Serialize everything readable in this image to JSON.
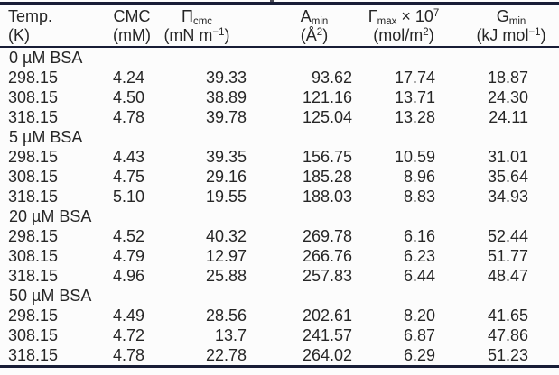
{
  "page": {
    "background_color": "#fcfcfc",
    "rule_color": "#181d36",
    "text_color": "#262626"
  },
  "table": {
    "columns": [
      {
        "line1": {
          "main": "Temp."
        },
        "line2": {
          "pre": "(K)"
        }
      },
      {
        "line1": {
          "main": "CMC"
        },
        "line2": {
          "pre": "(mM)"
        }
      },
      {
        "line1": {
          "main": "Π",
          "sub": "cmc"
        },
        "line2": {
          "pre": "(mN m",
          "sup": "−1",
          "post": ")"
        }
      },
      {
        "line1": {
          "main": "A",
          "sub": "min"
        },
        "line2": {
          "pre": "(Å",
          "sup": "2",
          "post": ")"
        }
      },
      {
        "line1": {
          "main": "Γ",
          "sub": "max",
          "mid": " × 10",
          "sup": "7"
        },
        "line2": {
          "pre": "(mol/m",
          "sup": "2",
          "post": ")"
        }
      },
      {
        "line1": {
          "main": "G",
          "sub": "min"
        },
        "line2": {
          "pre": "(kJ mol",
          "sup": "−1",
          "post": ")"
        }
      }
    ],
    "sections": [
      {
        "label": "0 µM BSA",
        "rows": [
          [
            "298.15",
            "4.24",
            "39.33",
            "93.62",
            "17.74",
            "18.87"
          ],
          [
            "308.15",
            "4.50",
            "38.89",
            "121.16",
            "13.71",
            "24.30"
          ],
          [
            "318.15",
            "4.78",
            "39.78",
            "125.04",
            "13.28",
            "24.11"
          ]
        ]
      },
      {
        "label": "5 µM BSA",
        "rows": [
          [
            "298.15",
            "4.43",
            "39.35",
            "156.75",
            "10.59",
            "31.01"
          ],
          [
            "308.15",
            "4.75",
            "29.16",
            "185.28",
            "8.96",
            "35.64"
          ],
          [
            "318.15",
            "5.10",
            "19.55",
            "188.03",
            "8.83",
            "34.93"
          ]
        ]
      },
      {
        "label": "20 µM BSA",
        "rows": [
          [
            "298.15",
            "4.52",
            "40.32",
            "269.78",
            "6.16",
            "52.44"
          ],
          [
            "308.15",
            "4.79",
            "12.97",
            "266.76",
            "6.23",
            "51.77"
          ],
          [
            "318.15",
            "4.96",
            "25.88",
            "257.83",
            "6.44",
            "48.47"
          ]
        ]
      },
      {
        "label": "50 µM BSA",
        "rows": [
          [
            "298.15",
            "4.49",
            "28.56",
            "202.61",
            "8.20",
            "41.65"
          ],
          [
            "308.15",
            "4.72",
            "13.7",
            "241.57",
            "6.87",
            "47.86"
          ],
          [
            "318.15",
            "4.78",
            "22.78",
            "264.02",
            "6.29",
            "51.23"
          ]
        ]
      }
    ]
  }
}
